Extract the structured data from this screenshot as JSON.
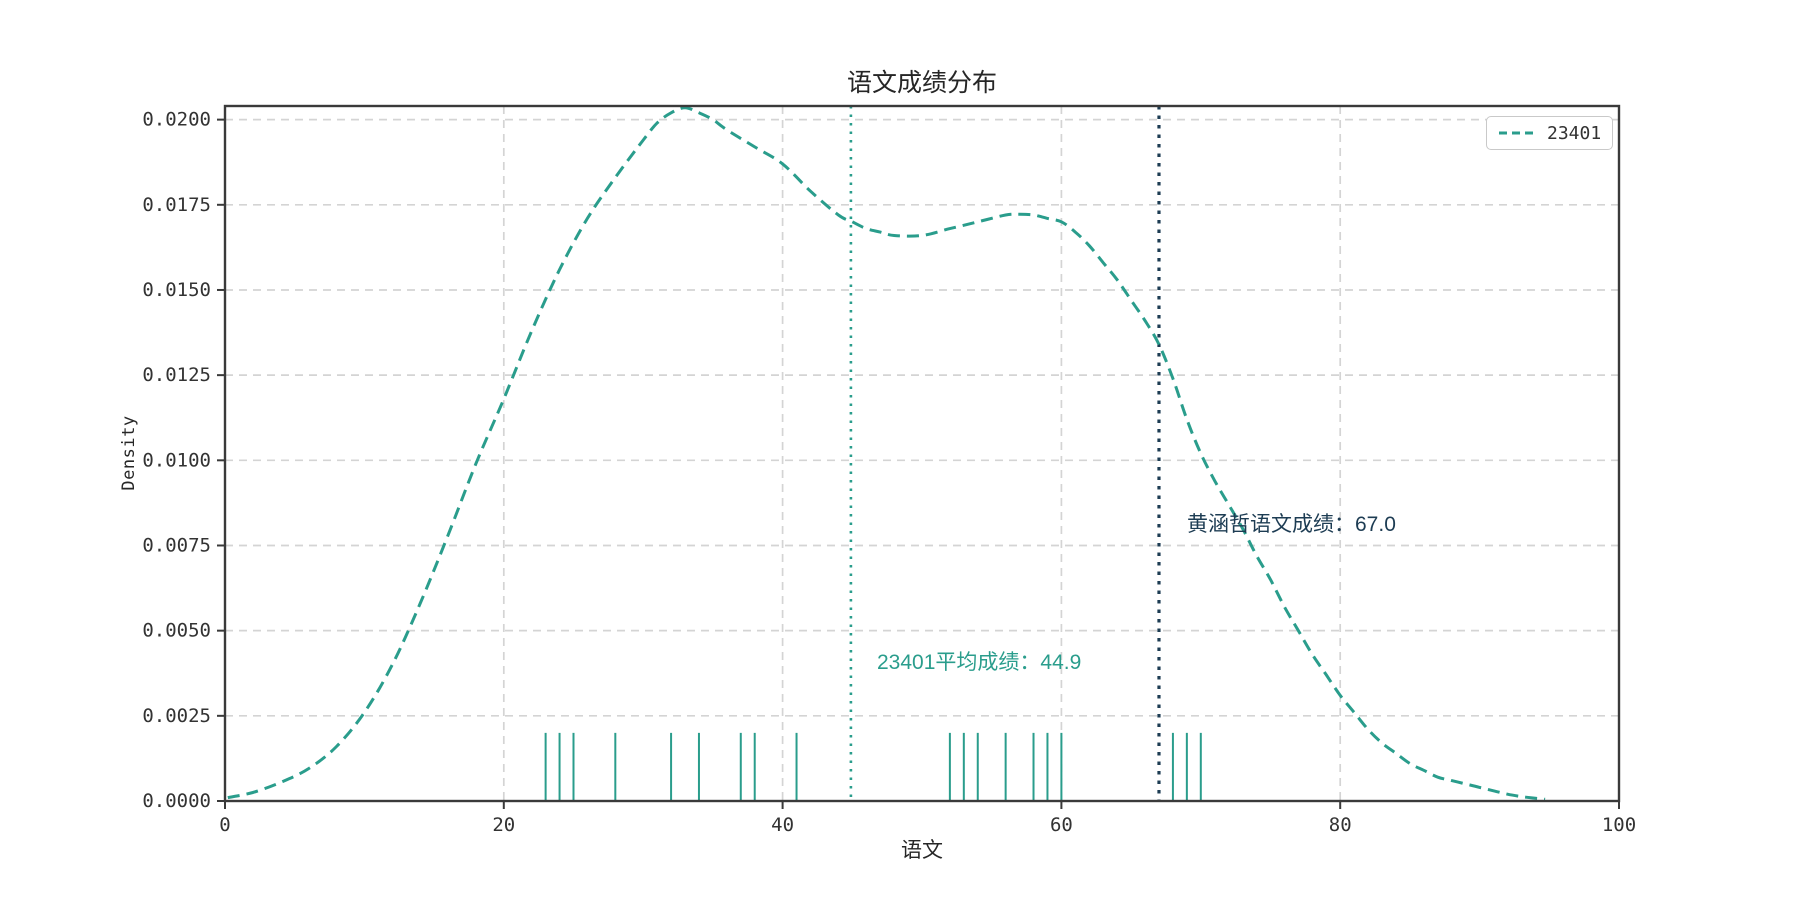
{
  "chart_data": {
    "type": "line",
    "subtype": "kde-density-with-rug",
    "title": "语文成绩分布",
    "xlabel": "语文",
    "ylabel": "Density",
    "xlim": [
      0,
      100
    ],
    "ylim": [
      0,
      0.0204
    ],
    "grid": true,
    "xtick_values": [
      0,
      20,
      40,
      60,
      80,
      100
    ],
    "xtick_labels": [
      "0",
      "20",
      "40",
      "60",
      "80",
      "100"
    ],
    "ytick_values": [
      0.0,
      0.0025,
      0.005,
      0.0075,
      0.01,
      0.0125,
      0.015,
      0.0175,
      0.02
    ],
    "ytick_labels": [
      "0.0000",
      "0.0025",
      "0.0050",
      "0.0075",
      "0.0100",
      "0.0125",
      "0.0150",
      "0.0175",
      "0.0200"
    ],
    "legend": {
      "position": "upper right",
      "entries": [
        {
          "label": "23401",
          "color": "#2a9d8c",
          "linestyle": "dashed"
        }
      ]
    },
    "series": [
      {
        "name": "23401",
        "color": "#2a9d8c",
        "linestyle": "dashed",
        "points": [
          [
            0.2,
            0.0001
          ],
          [
            2,
            0.00025
          ],
          [
            4,
            0.00055
          ],
          [
            6,
            0.00095
          ],
          [
            8,
            0.0016
          ],
          [
            10,
            0.0026
          ],
          [
            12,
            0.004
          ],
          [
            14,
            0.0058
          ],
          [
            16,
            0.0078
          ],
          [
            18,
            0.0099
          ],
          [
            20,
            0.0118
          ],
          [
            22,
            0.0138
          ],
          [
            24,
            0.0156
          ],
          [
            26,
            0.0171
          ],
          [
            28,
            0.0183
          ],
          [
            30,
            0.0194
          ],
          [
            31,
            0.0199
          ],
          [
            32,
            0.0202
          ],
          [
            33,
            0.02035
          ],
          [
            34,
            0.0202
          ],
          [
            35,
            0.02
          ],
          [
            36,
            0.0197
          ],
          [
            38,
            0.0192
          ],
          [
            40,
            0.0187
          ],
          [
            42,
            0.0179
          ],
          [
            44,
            0.0172
          ],
          [
            45,
            0.017
          ],
          [
            46,
            0.0168
          ],
          [
            47,
            0.0167
          ],
          [
            48,
            0.0166
          ],
          [
            50,
            0.0166
          ],
          [
            52,
            0.0168
          ],
          [
            54,
            0.017
          ],
          [
            56,
            0.0172
          ],
          [
            57,
            0.01722
          ],
          [
            58,
            0.0172
          ],
          [
            59,
            0.0171
          ],
          [
            60,
            0.017
          ],
          [
            61,
            0.0167
          ],
          [
            62,
            0.0163
          ],
          [
            63,
            0.0158
          ],
          [
            64,
            0.0153
          ],
          [
            65,
            0.0147
          ],
          [
            66,
            0.0141
          ],
          [
            67,
            0.0134
          ],
          [
            68,
            0.0124
          ],
          [
            69,
            0.0112
          ],
          [
            70,
            0.0102
          ],
          [
            71,
            0.0094
          ],
          [
            72,
            0.0087
          ],
          [
            73,
            0.008
          ],
          [
            74,
            0.0072
          ],
          [
            75,
            0.0065
          ],
          [
            76,
            0.0057
          ],
          [
            77,
            0.005
          ],
          [
            78,
            0.0043
          ],
          [
            79,
            0.0037
          ],
          [
            80,
            0.0031
          ],
          [
            81,
            0.0026
          ],
          [
            82,
            0.0021
          ],
          [
            83,
            0.0017
          ],
          [
            84,
            0.0014
          ],
          [
            85,
            0.0011
          ],
          [
            86,
            0.0009
          ],
          [
            87,
            0.0007
          ],
          [
            88,
            0.0006
          ],
          [
            89,
            0.0005
          ],
          [
            90,
            0.0004
          ],
          [
            91,
            0.0003
          ],
          [
            92,
            0.0002
          ],
          [
            93,
            0.00013
          ],
          [
            94,
            8e-05
          ],
          [
            94.7,
            5e-05
          ]
        ]
      }
    ],
    "rug": {
      "color": "#2a9d8c",
      "height": 0.002,
      "values": [
        23,
        24,
        25,
        28,
        32,
        34,
        37,
        38,
        41,
        52,
        53,
        54,
        56,
        58,
        59,
        60,
        68,
        69,
        70
      ]
    },
    "vlines": [
      {
        "x": 44.9,
        "color": "#2a9d8c",
        "linestyle": "dotted",
        "label": "23401平均成绩：44.9"
      },
      {
        "x": 67.0,
        "color": "#1d3c53",
        "linestyle": "dotted",
        "label": "黄涵哲语文成绩：67.0"
      }
    ],
    "annotation_values": {
      "class_mean": 44.9,
      "student_score": 67.0
    }
  },
  "style_colors": {
    "curve": "#2a9d8c",
    "mean_line": "#2a9d8c",
    "score_line": "#1d3c53",
    "grid": "#d4d4d4",
    "spine": "#3a3a3a",
    "tick_text": "#333333"
  }
}
